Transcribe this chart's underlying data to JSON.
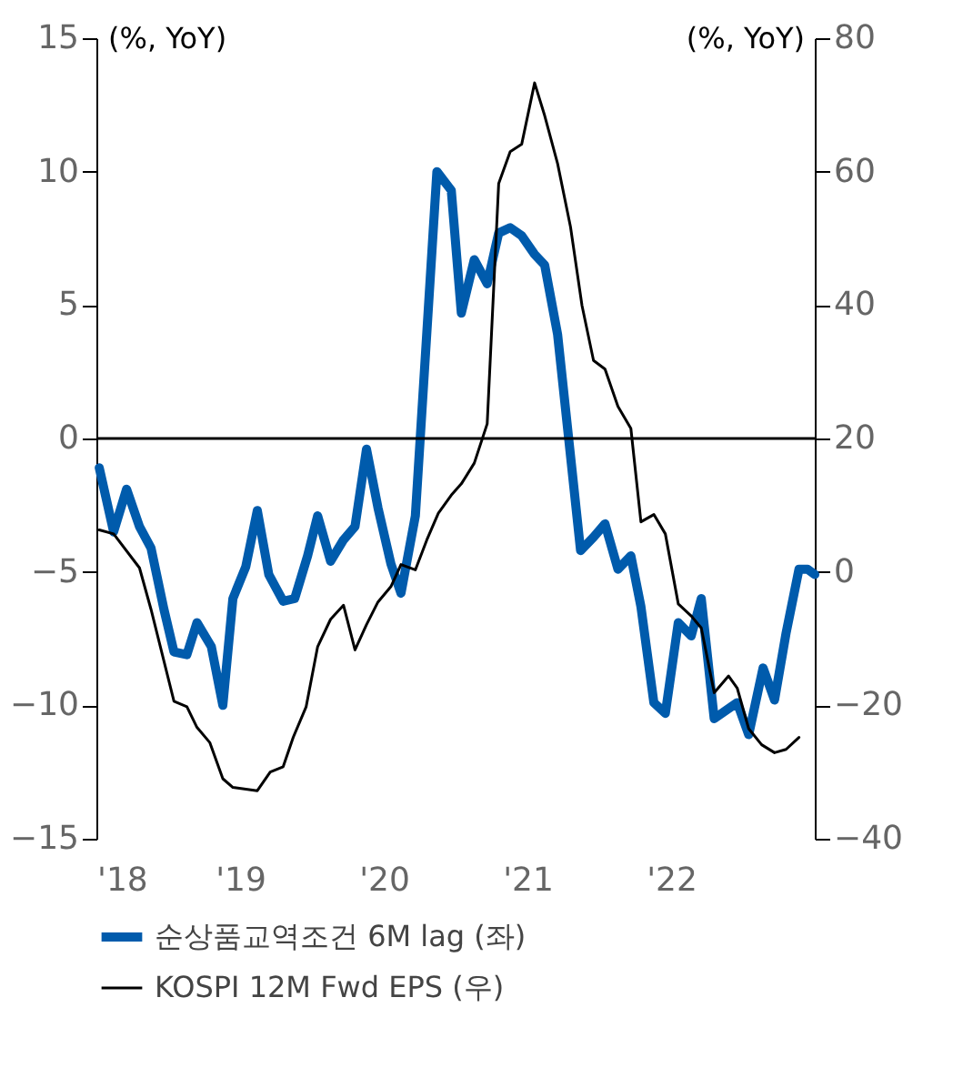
{
  "chart_data": {
    "type": "line",
    "ylabel": "(%, YoY)",
    "y2label": "(%, YoY)",
    "xlim": [
      2018,
      2023
    ],
    "xticks": [
      {
        "value": 2018,
        "label": "'18"
      },
      {
        "value": 2019,
        "label": "'19"
      },
      {
        "value": 2020,
        "label": "'20"
      },
      {
        "value": 2021,
        "label": "'21"
      },
      {
        "value": 2022,
        "label": "'22"
      },
      {
        "value": 2023,
        "label": null
      }
    ],
    "ylim": [
      -15,
      15
    ],
    "yticks": [
      -15,
      -10,
      -5,
      0,
      5,
      10,
      15
    ],
    "y2lim": [
      -40,
      80
    ],
    "y2ticks": [
      -40,
      -20,
      0,
      20,
      40,
      60,
      80
    ],
    "ref_lines": [
      {
        "axis": "y",
        "value": 0,
        "color": "#000000"
      }
    ],
    "grid": false,
    "legend": "bottom",
    "marker": "none",
    "line_style": "solid",
    "series": [
      {
        "name": "순상품교역조건 6M lag (좌)",
        "color": "#005bac",
        "axis": "y",
        "x": [
          2018.02,
          2018.12,
          2018.21,
          2018.3,
          2018.38,
          2018.47,
          2018.54,
          2018.63,
          2018.7,
          2018.8,
          2018.88,
          2018.95,
          2019.04,
          2019.12,
          2019.2,
          2019.3,
          2019.38,
          2019.47,
          2019.54,
          2019.63,
          2019.72,
          2019.8,
          2019.88,
          2019.96,
          2020.05,
          2020.12,
          2020.22,
          2020.37,
          2020.47,
          2020.54,
          2020.63,
          2020.72,
          2020.8,
          2020.88,
          2020.96,
          2021.05,
          2021.12,
          2021.21,
          2021.37,
          2021.46,
          2021.54,
          2021.63,
          2021.72,
          2021.79,
          2021.88,
          2021.96,
          2022.05,
          2022.14,
          2022.21,
          2022.3,
          2022.38,
          2022.46,
          2022.54,
          2022.64,
          2022.72,
          2022.8,
          2022.89,
          2022.95,
          2023.0
        ],
        "values": [
          -1.1,
          -3.5,
          -1.9,
          -3.3,
          -4.1,
          -6.4,
          -8.0,
          -8.1,
          -6.9,
          -7.8,
          -10.0,
          -6.0,
          -4.8,
          -2.7,
          -5.1,
          -6.1,
          -6.0,
          -4.4,
          -2.9,
          -4.6,
          -3.8,
          -3.3,
          -0.4,
          -2.6,
          -4.7,
          -5.8,
          -2.9,
          10.0,
          9.3,
          4.7,
          6.7,
          5.8,
          7.7,
          7.9,
          7.6,
          6.9,
          6.5,
          3.9,
          -4.2,
          -3.7,
          -3.2,
          -4.9,
          -4.4,
          -6.3,
          -9.9,
          -10.3,
          -6.9,
          -7.4,
          -6.0,
          -10.5,
          -10.2,
          -9.9,
          -11.1,
          -8.6,
          -9.8,
          -7.3,
          -4.9,
          -4.9,
          -5.1
        ]
      },
      {
        "name": "KOSPI 12M Fwd EPS (우)",
        "color": "#000000",
        "axis": "y2",
        "x": [
          2018.02,
          2018.12,
          2018.3,
          2018.38,
          2018.54,
          2018.63,
          2018.7,
          2018.79,
          2018.88,
          2018.95,
          2019.12,
          2019.21,
          2019.3,
          2019.37,
          2019.46,
          2019.54,
          2019.63,
          2019.72,
          2019.8,
          2019.88,
          2019.96,
          2020.05,
          2020.12,
          2020.22,
          2020.3,
          2020.38,
          2020.47,
          2020.54,
          2020.63,
          2020.72,
          2020.8,
          2020.88,
          2020.96,
          2021.05,
          2021.12,
          2021.21,
          2021.3,
          2021.38,
          2021.46,
          2021.54,
          2021.63,
          2021.72,
          2021.79,
          2021.88,
          2021.96,
          2022.05,
          2022.14,
          2022.21,
          2022.3,
          2022.4,
          2022.46,
          2022.54,
          2022.63,
          2022.72,
          2022.8,
          2022.89
        ],
        "values": [
          6.3,
          5.7,
          0.6,
          -5.6,
          -19.4,
          -20.2,
          -23.3,
          -25.6,
          -31.0,
          -32.3,
          -32.8,
          -30.0,
          -29.2,
          -24.8,
          -20.2,
          -11.2,
          -7.1,
          -5.0,
          -11.7,
          -7.9,
          -4.5,
          -2.2,
          1.1,
          0.3,
          4.8,
          8.8,
          11.5,
          13.2,
          16.3,
          22.2,
          58.2,
          63.0,
          64.1,
          73.3,
          68.4,
          61.2,
          51.7,
          39.9,
          31.7,
          30.4,
          24.8,
          21.5,
          7.5,
          8.6,
          5.7,
          -4.8,
          -6.6,
          -8.4,
          -18.1,
          -15.6,
          -17.4,
          -23.5,
          -25.9,
          -27.1,
          -26.6,
          -24.8
        ]
      }
    ]
  }
}
